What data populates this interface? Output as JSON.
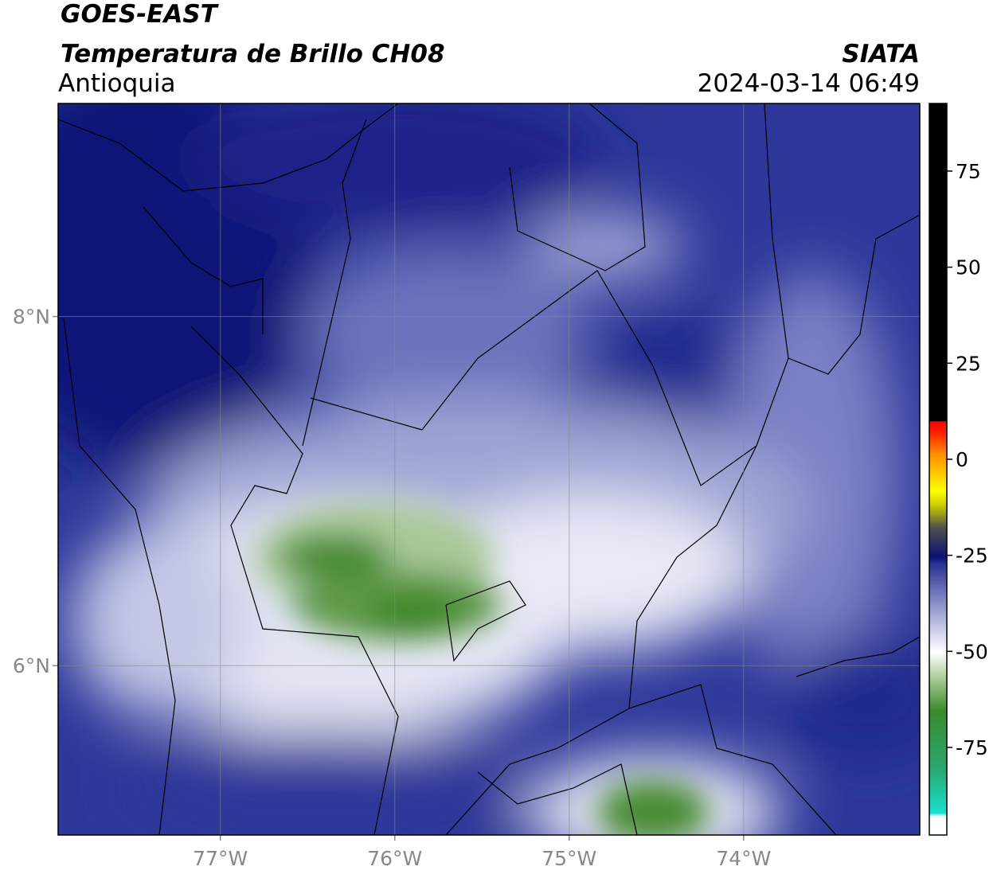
{
  "header": {
    "title": "GOES-EAST",
    "subtitle": "Temperatura de Brillo CH08",
    "region": "Antioquia",
    "source": "SIATA",
    "timestamp": "2024-03-14 06:49"
  },
  "map": {
    "lonlim": [
      -77.93,
      -72.99
    ],
    "latlim": [
      5.03,
      9.22
    ],
    "lon_ticks": [
      {
        "value": -77,
        "label": "77°W"
      },
      {
        "value": -76,
        "label": "76°W"
      },
      {
        "value": -75,
        "label": "75°W"
      },
      {
        "value": -74,
        "label": "74°W"
      }
    ],
    "lat_ticks": [
      {
        "value": 6,
        "label": "6°N"
      },
      {
        "value": 8,
        "label": "8°N"
      }
    ]
  },
  "colorbar": {
    "lim": [
      -97.8,
      92.6
    ],
    "ticks": [
      75,
      50,
      25,
      0,
      -25,
      -50,
      -75
    ]
  }
}
